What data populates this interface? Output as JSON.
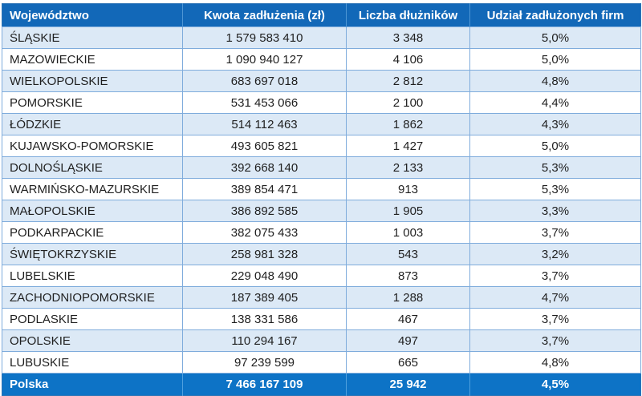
{
  "table": {
    "columns": [
      {
        "key": "wojewodztwo",
        "label": "Województwo"
      },
      {
        "key": "kwota",
        "label": "Kwota zadłużenia (zł)"
      },
      {
        "key": "liczba",
        "label": "Liczba dłużników"
      },
      {
        "key": "udzial",
        "label": "Udział zadłużonych firm"
      }
    ],
    "rows": [
      [
        "ŚLĄSKIE",
        "1 579 583 410",
        "3 348",
        "5,0%"
      ],
      [
        "MAZOWIECKIE",
        "1 090 940 127",
        "4 106",
        "5,0%"
      ],
      [
        "WIELKOPOLSKIE",
        "683 697 018",
        "2 812",
        "4,8%"
      ],
      [
        "POMORSKIE",
        "531 453 066",
        "2 100",
        "4,4%"
      ],
      [
        "ŁÓDZKIE",
        "514 112 463",
        "1 862",
        "4,3%"
      ],
      [
        "KUJAWSKO-POMORSKIE",
        "493 605 821",
        "1 427",
        "5,0%"
      ],
      [
        "DOLNOŚLĄSKIE",
        "392 668 140",
        "2 133",
        "5,3%"
      ],
      [
        "WARMIŃSKO-MAZURSKIE",
        "389 854 471",
        "913",
        "5,3%"
      ],
      [
        "MAŁOPOLSKIE",
        "386 892 585",
        "1 905",
        "3,3%"
      ],
      [
        "PODKARPACKIE",
        "382 075 433",
        "1 003",
        "3,7%"
      ],
      [
        "ŚWIĘTOKRZYSKIE",
        "258 981 328",
        "543",
        "3,2%"
      ],
      [
        "LUBELSKIE",
        "229 048 490",
        "873",
        "3,7%"
      ],
      [
        "ZACHODNIOPOMORSKIE",
        "187 389 405",
        "1 288",
        "4,7%"
      ],
      [
        "PODLASKIE",
        "138 331 586",
        "467",
        "3,7%"
      ],
      [
        "OPOLSKIE",
        "110 294 167",
        "497",
        "3,7%"
      ],
      [
        "LUBUSKIE",
        "97 239 599",
        "665",
        "4,8%"
      ]
    ],
    "footer": [
      "Polska",
      "7 466 167 109",
      "25 942",
      "4,5%"
    ]
  },
  "colors": {
    "header_bg": "#1268B8",
    "footer_bg": "#0D73C6",
    "header_text": "#FFFFFF",
    "row_alt_bg": "#DCE9F6",
    "row_bg": "#FFFFFF",
    "grid_border": "#7FACDC",
    "outer_border": "#2E75B6",
    "header_sep": "#4E96D4",
    "footer_sep": "#4FA0DE",
    "text": "#1F1F1F"
  },
  "chart_data": {
    "type": "table",
    "title": "",
    "columns": [
      "Województwo",
      "Kwota zadłużenia (zł)",
      "Liczba dłużników",
      "Udział zadłużonych firm"
    ],
    "rows": [
      {
        "wojewodztwo": "ŚLĄSKIE",
        "kwota_zadluzenia_zl": 1579583410,
        "liczba_dluznikow": 3348,
        "udzial_zadluzonych_firm_pct": 5.0
      },
      {
        "wojewodztwo": "MAZOWIECKIE",
        "kwota_zadluzenia_zl": 1090940127,
        "liczba_dluznikow": 4106,
        "udzial_zadluzonych_firm_pct": 5.0
      },
      {
        "wojewodztwo": "WIELKOPOLSKIE",
        "kwota_zadluzenia_zl": 683697018,
        "liczba_dluznikow": 2812,
        "udzial_zadluzonych_firm_pct": 4.8
      },
      {
        "wojewodztwo": "POMORSKIE",
        "kwota_zadluzenia_zl": 531453066,
        "liczba_dluznikow": 2100,
        "udzial_zadluzonych_firm_pct": 4.4
      },
      {
        "wojewodztwo": "ŁÓDZKIE",
        "kwota_zadluzenia_zl": 514112463,
        "liczba_dluznikow": 1862,
        "udzial_zadluzonych_firm_pct": 4.3
      },
      {
        "wojewodztwo": "KUJAWSKO-POMORSKIE",
        "kwota_zadluzenia_zl": 493605821,
        "liczba_dluznikow": 1427,
        "udzial_zadluzonych_firm_pct": 5.0
      },
      {
        "wojewodztwo": "DOLNOŚLĄSKIE",
        "kwota_zadluzenia_zl": 392668140,
        "liczba_dluznikow": 2133,
        "udzial_zadluzonych_firm_pct": 5.3
      },
      {
        "wojewodztwo": "WARMIŃSKO-MAZURSKIE",
        "kwota_zadluzenia_zl": 389854471,
        "liczba_dluznikow": 913,
        "udzial_zadluzonych_firm_pct": 5.3
      },
      {
        "wojewodztwo": "MAŁOPOLSKIE",
        "kwota_zadluzenia_zl": 386892585,
        "liczba_dluznikow": 1905,
        "udzial_zadluzonych_firm_pct": 3.3
      },
      {
        "wojewodztwo": "PODKARPACKIE",
        "kwota_zadluzenia_zl": 382075433,
        "liczba_dluznikow": 1003,
        "udzial_zadluzonych_firm_pct": 3.7
      },
      {
        "wojewodztwo": "ŚWIĘTOKRZYSKIE",
        "kwota_zadluzenia_zl": 258981328,
        "liczba_dluznikow": 543,
        "udzial_zadluzonych_firm_pct": 3.2
      },
      {
        "wojewodztwo": "LUBELSKIE",
        "kwota_zadluzenia_zl": 229048490,
        "liczba_dluznikow": 873,
        "udzial_zadluzonych_firm_pct": 3.7
      },
      {
        "wojewodztwo": "ZACHODNIOPOMORSKIE",
        "kwota_zadluzenia_zl": 187389405,
        "liczba_dluznikow": 1288,
        "udzial_zadluzonych_firm_pct": 4.7
      },
      {
        "wojewodztwo": "PODLASKIE",
        "kwota_zadluzenia_zl": 138331586,
        "liczba_dluznikow": 467,
        "udzial_zadluzonych_firm_pct": 3.7
      },
      {
        "wojewodztwo": "OPOLSKIE",
        "kwota_zadluzenia_zl": 110294167,
        "liczba_dluznikow": 497,
        "udzial_zadluzonych_firm_pct": 3.7
      },
      {
        "wojewodztwo": "LUBUSKIE",
        "kwota_zadluzenia_zl": 97239599,
        "liczba_dluznikow": 665,
        "udzial_zadluzonych_firm_pct": 4.8
      }
    ],
    "total": {
      "wojewodztwo": "Polska",
      "kwota_zadluzenia_zl": 7466167109,
      "liczba_dluznikow": 25942,
      "udzial_zadluzonych_firm_pct": 4.5
    }
  }
}
